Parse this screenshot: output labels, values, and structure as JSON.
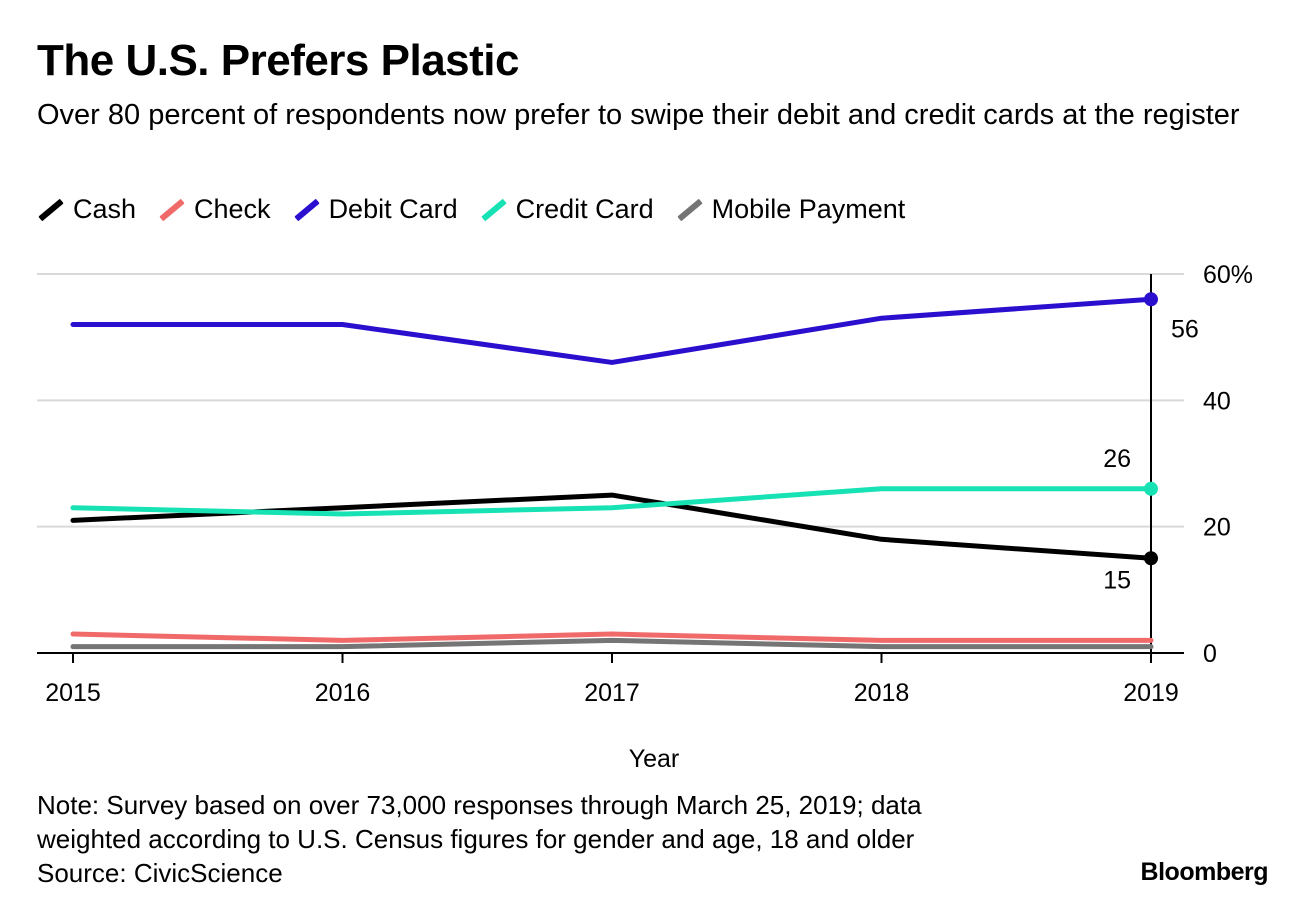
{
  "chart_data": {
    "type": "line",
    "title": "The U.S. Prefers Plastic",
    "subtitle": "Over 80 percent of respondents now prefer to swipe their debit and credit cards at the register",
    "xlabel": "Year",
    "ylabel": "",
    "x": [
      "2015",
      "2016",
      "2017",
      "2018",
      "2019"
    ],
    "ylim": [
      0,
      60
    ],
    "yticks": [
      {
        "value": 0,
        "label": "0"
      },
      {
        "value": 20,
        "label": "20"
      },
      {
        "value": 40,
        "label": "40"
      },
      {
        "value": 60,
        "label": "60%"
      }
    ],
    "grid": true,
    "legend_position": "top",
    "series": [
      {
        "name": "Cash",
        "color": "#000000",
        "values": [
          21,
          23,
          25,
          18,
          15
        ],
        "end_label": "15",
        "end_label_pos": "below"
      },
      {
        "name": "Check",
        "color": "#f06a6a",
        "values": [
          3,
          2,
          3,
          2,
          2
        ]
      },
      {
        "name": "Debit Card",
        "color": "#2a0fcf",
        "values": [
          52,
          52,
          46,
          53,
          56
        ],
        "end_label": "56",
        "end_label_pos": "right-below"
      },
      {
        "name": "Credit Card",
        "color": "#17e2b4",
        "values": [
          23,
          22,
          23,
          26,
          26
        ],
        "end_label": "26",
        "end_label_pos": "above"
      },
      {
        "name": "Mobile Payment",
        "color": "#757575",
        "values": [
          1,
          1,
          2,
          1,
          1
        ]
      }
    ]
  },
  "note": {
    "line1": "Note: Survey based on over 73,000 responses through March 25, 2019; data",
    "line2": "weighted according to U.S. Census figures for gender and age, 18 and older",
    "source": "Source: CivicScience"
  },
  "brand": "Bloomberg"
}
